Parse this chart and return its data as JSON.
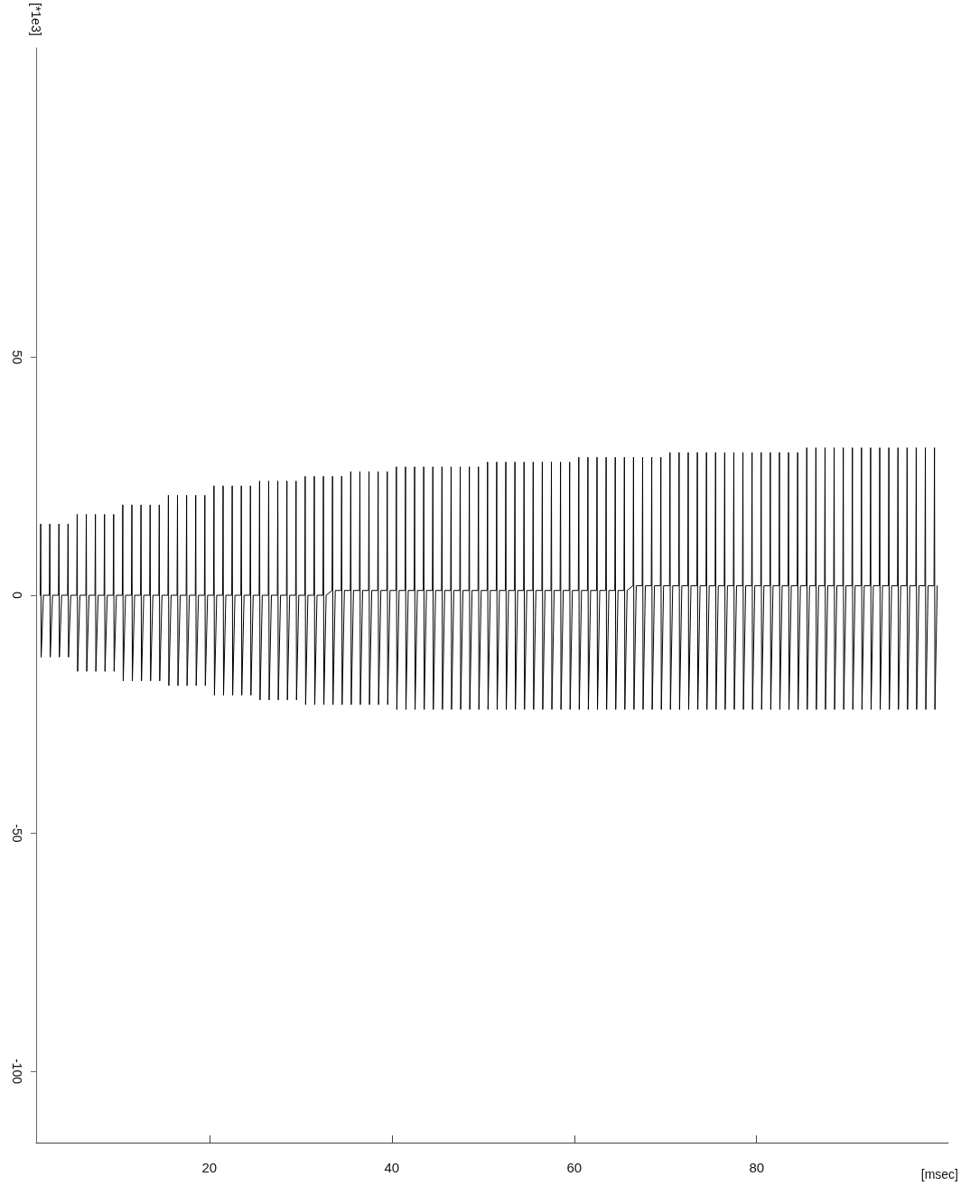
{
  "chart_data": {
    "type": "line",
    "xlabel": "[msec]",
    "ylabel": "[*1e3]",
    "xlim": [
      1,
      101
    ],
    "xticks": [
      20,
      40,
      60,
      80
    ],
    "ylim": [
      -115,
      115
    ],
    "yticks": [
      -100,
      -50,
      0,
      50
    ],
    "marker": "none",
    "line_style": "solid",
    "series": [
      {
        "color": "#000000",
        "x": [
          1.45,
          1.5,
          1.55,
          1.8,
          2.45,
          2.5,
          2.55,
          2.8,
          3.45,
          3.5,
          3.55,
          3.8,
          4.45,
          4.5,
          4.55,
          4.8,
          5.45,
          5.5,
          5.55,
          5.8,
          6.45,
          6.5,
          6.55,
          6.8,
          7.45,
          7.5,
          7.55,
          7.8,
          8.45,
          8.5,
          8.55,
          8.8,
          9.45,
          9.5,
          9.55,
          9.8,
          10.45,
          10.5,
          10.55,
          10.8,
          11.45,
          11.5,
          11.55,
          11.8,
          12.45,
          12.5,
          12.55,
          12.8,
          13.45,
          13.5,
          13.55,
          13.8,
          14.45,
          14.5,
          14.55,
          14.8,
          15.45,
          15.5,
          15.55,
          15.8,
          16.45,
          16.5,
          16.55,
          16.8,
          17.45,
          17.5,
          17.55,
          17.8,
          18.45,
          18.5,
          18.55,
          18.8,
          19.45,
          19.5,
          19.55,
          19.8,
          20.45,
          20.5,
          20.55,
          20.8,
          21.45,
          21.5,
          21.55,
          21.8,
          22.45,
          22.5,
          22.55,
          22.8,
          23.45,
          23.5,
          23.55,
          23.8,
          24.45,
          24.5,
          24.55,
          24.8,
          25.45,
          25.5,
          25.55,
          25.8,
          26.45,
          26.5,
          26.55,
          26.8,
          27.45,
          27.5,
          27.55,
          27.8,
          28.45,
          28.5,
          28.55,
          28.8,
          29.45,
          29.5,
          29.55,
          29.8,
          30.45,
          30.5,
          30.55,
          30.8,
          31.45,
          31.5,
          31.55,
          31.8,
          32.45,
          32.5,
          32.55,
          32.8,
          33.45,
          33.5,
          33.55,
          33.8,
          34.45,
          34.5,
          34.55,
          34.8,
          35.45,
          35.5,
          35.55,
          35.8,
          36.45,
          36.5,
          36.55,
          36.8,
          37.45,
          37.5,
          37.55,
          37.8,
          38.45,
          38.5,
          38.55,
          38.8,
          39.45,
          39.5,
          39.55,
          39.8,
          40.45,
          40.5,
          40.55,
          40.8,
          41.45,
          41.5,
          41.55,
          41.8,
          42.45,
          42.5,
          42.55,
          42.8,
          43.45,
          43.5,
          43.55,
          43.8,
          44.45,
          44.5,
          44.55,
          44.8,
          45.45,
          45.5,
          45.55,
          45.8,
          46.45,
          46.5,
          46.55,
          46.8,
          47.45,
          47.5,
          47.55,
          47.8,
          48.45,
          48.5,
          48.55,
          48.8,
          49.45,
          49.5,
          49.55,
          49.8,
          50.45,
          50.5,
          50.55,
          50.8,
          51.45,
          51.5,
          51.55,
          51.8,
          52.45,
          52.5,
          52.55,
          52.8,
          53.45,
          53.5,
          53.55,
          53.8,
          54.45,
          54.5,
          54.55,
          54.8,
          55.45,
          55.5,
          55.55,
          55.8,
          56.45,
          56.5,
          56.55,
          56.8,
          57.45,
          57.5,
          57.55,
          57.8,
          58.45,
          58.5,
          58.55,
          58.8,
          59.45,
          59.5,
          59.55,
          59.8,
          60.45,
          60.5,
          60.55,
          60.8,
          61.45,
          61.5,
          61.55,
          61.8,
          62.45,
          62.5,
          62.55,
          62.8,
          63.45,
          63.5,
          63.55,
          63.8,
          64.45,
          64.5,
          64.55,
          64.8,
          65.45,
          65.5,
          65.55,
          65.8,
          66.45,
          66.5,
          66.55,
          66.8,
          67.45,
          67.5,
          67.55,
          67.8,
          68.45,
          68.5,
          68.55,
          68.8,
          69.45,
          69.5,
          69.55,
          69.8,
          70.45,
          70.5,
          70.55,
          70.8,
          71.45,
          71.5,
          71.55,
          71.8,
          72.45,
          72.5,
          72.55,
          72.8,
          73.45,
          73.5,
          73.55,
          73.8,
          74.45,
          74.5,
          74.55,
          74.8,
          75.45,
          75.5,
          75.55,
          75.8,
          76.45,
          76.5,
          76.55,
          76.8,
          77.45,
          77.5,
          77.55,
          77.8,
          78.45,
          78.5,
          78.55,
          78.8,
          79.45,
          79.5,
          79.55,
          79.8,
          80.45,
          80.5,
          80.55,
          80.8,
          81.45,
          81.5,
          81.55,
          81.8,
          82.45,
          82.5,
          82.55,
          82.8,
          83.45,
          83.5,
          83.55,
          83.8,
          84.45,
          84.5,
          84.55,
          84.8,
          85.45,
          85.5,
          85.55,
          85.8,
          86.45,
          86.5,
          86.55,
          86.8,
          87.45,
          87.5,
          87.55,
          87.8,
          88.45,
          88.5,
          88.55,
          88.8,
          89.45,
          89.5,
          89.55,
          89.8,
          90.45,
          90.5,
          90.55,
          90.8,
          91.45,
          91.5,
          91.55,
          91.8,
          92.45,
          92.5,
          92.55,
          92.8,
          93.45,
          93.5,
          93.55,
          93.8,
          94.45,
          94.5,
          94.55,
          94.8,
          95.45,
          95.5,
          95.55,
          95.8,
          96.45,
          96.5,
          96.55,
          96.8,
          97.45,
          97.5,
          97.55,
          97.8,
          98.45,
          98.5,
          98.55,
          98.8,
          99.45,
          99.5,
          99.55,
          99.8
        ],
        "values": [
          0,
          15,
          -13,
          0,
          0,
          15,
          -13,
          0,
          0,
          15,
          -13,
          0,
          0,
          15,
          -13,
          0,
          0,
          17,
          -16,
          0,
          0,
          17,
          -16,
          0,
          0,
          17,
          -16,
          0,
          0,
          17,
          -16,
          0,
          0,
          17,
          -16,
          0,
          0,
          19,
          -18,
          0,
          0,
          19,
          -18,
          0,
          0,
          19,
          -18,
          0,
          0,
          19,
          -18,
          0,
          0,
          19,
          -18,
          0,
          0,
          21,
          -19,
          0,
          0,
          21,
          -19,
          0,
          0,
          21,
          -19,
          0,
          0,
          21,
          -19,
          0,
          0,
          21,
          -19,
          0,
          0,
          23,
          -21,
          0,
          0,
          23,
          -21,
          0,
          0,
          23,
          -21,
          0,
          0,
          23,
          -21,
          0,
          0,
          23,
          -21,
          0,
          0,
          24,
          -22,
          0,
          0,
          24,
          -22,
          0,
          0,
          24,
          -22,
          0,
          0,
          24,
          -22,
          0,
          0,
          24,
          -22,
          0,
          0,
          25,
          -23,
          0,
          0,
          25,
          -23,
          0,
          0,
          25,
          -23,
          0,
          1,
          25,
          -23,
          1,
          1,
          25,
          -23,
          1,
          1,
          26,
          -23,
          1,
          1,
          26,
          -23,
          1,
          1,
          26,
          -23,
          1,
          1,
          26,
          -23,
          1,
          1,
          26,
          -23,
          1,
          1,
          27,
          -24,
          1,
          1,
          27,
          -24,
          1,
          1,
          27,
          -24,
          1,
          1,
          27,
          -24,
          1,
          1,
          27,
          -24,
          1,
          1,
          27,
          -24,
          1,
          1,
          27,
          -24,
          1,
          1,
          27,
          -24,
          1,
          1,
          27,
          -24,
          1,
          1,
          27,
          -24,
          1,
          1,
          28,
          -24,
          1,
          1,
          28,
          -24,
          1,
          1,
          28,
          -24,
          1,
          1,
          28,
          -24,
          1,
          1,
          28,
          -24,
          1,
          1,
          28,
          -24,
          1,
          1,
          28,
          -24,
          1,
          1,
          28,
          -24,
          1,
          1,
          28,
          -24,
          1,
          1,
          28,
          -24,
          1,
          1,
          29,
          -24,
          1,
          1,
          29,
          -24,
          1,
          1,
          29,
          -24,
          1,
          1,
          29,
          -24,
          1,
          1,
          29,
          -24,
          1,
          1,
          29,
          -24,
          1,
          2,
          29,
          -24,
          2,
          2,
          29,
          -24,
          2,
          2,
          29,
          -24,
          2,
          2,
          29,
          -24,
          2,
          2,
          30,
          -24,
          2,
          2,
          30,
          -24,
          2,
          2,
          30,
          -24,
          2,
          2,
          30,
          -24,
          2,
          2,
          30,
          -24,
          2,
          2,
          30,
          -24,
          2,
          2,
          30,
          -24,
          2,
          2,
          30,
          -24,
          2,
          2,
          30,
          -24,
          2,
          2,
          30,
          -24,
          2,
          2,
          30,
          -24,
          2,
          2,
          30,
          -24,
          2,
          2,
          30,
          -24,
          2,
          2,
          30,
          -24,
          2,
          2,
          30,
          -24,
          2,
          2,
          31,
          -24,
          2,
          2,
          31,
          -24,
          2,
          2,
          31,
          -24,
          2,
          2,
          31,
          -24,
          2,
          2,
          31,
          -24,
          2,
          2,
          31,
          -24,
          2,
          2,
          31,
          -24,
          2,
          2,
          31,
          -24,
          2,
          2,
          31,
          -24,
          2,
          2,
          31,
          -24,
          2,
          2,
          31,
          -24,
          2,
          2,
          31,
          -24,
          2,
          2,
          31,
          -24,
          2,
          2,
          31,
          -24,
          2,
          2,
          31,
          -24,
          2
        ]
      }
    ]
  }
}
